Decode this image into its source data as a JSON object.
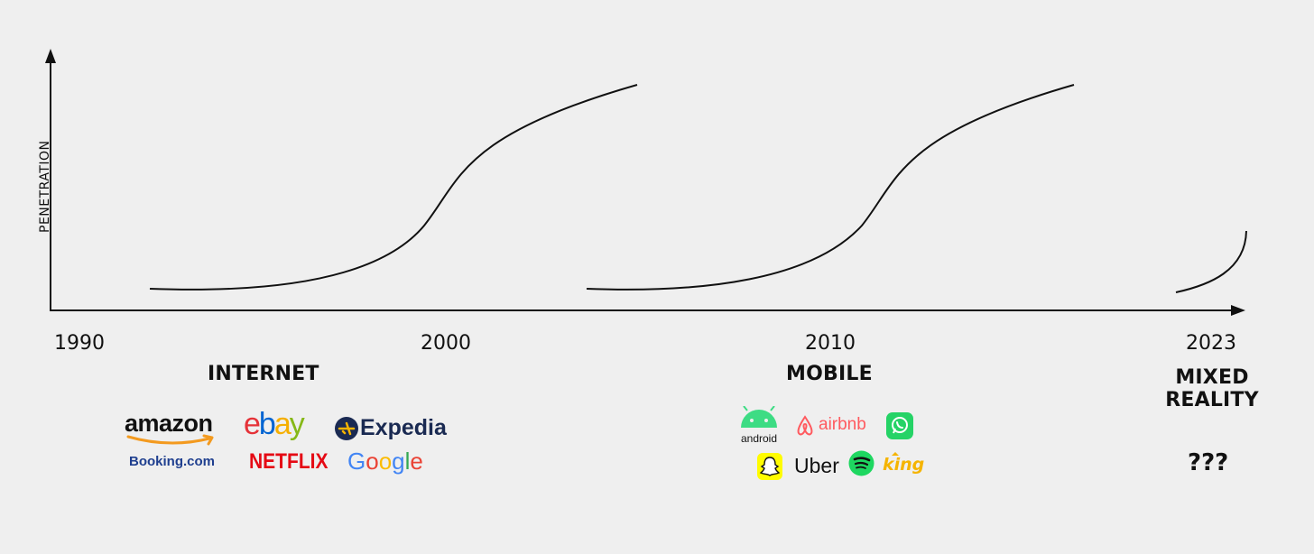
{
  "axis": {
    "ylabel": "PENETRATION"
  },
  "years": [
    "1990",
    "2000",
    "2010",
    "2023"
  ],
  "eras": [
    {
      "name": "INTERNET"
    },
    {
      "name": "MOBILE"
    },
    {
      "name_lines": [
        "MIXED",
        "REALITY"
      ]
    }
  ],
  "internet_logos": [
    "amazon",
    "ebay",
    "Expedia",
    "Booking.com",
    "NETFLIX",
    "Google"
  ],
  "mobile_logos": [
    "android",
    "airbnb",
    "whatsapp-icon",
    "snapchat-icon",
    "Uber",
    "spotify-icon",
    "king"
  ],
  "mixed_reality_logos": "???",
  "colors": {
    "background": "#efefef",
    "line": "#111111",
    "amazon_arrow": "#f39a1f",
    "ebay": [
      "#e53238",
      "#0064d2",
      "#f5af02",
      "#86b817"
    ],
    "expedia": "#1a2a52",
    "booking": "#1f3f8f",
    "netflix": "#e50914",
    "google": [
      "#4285f4",
      "#ea4335",
      "#fbbc05",
      "#4285f4",
      "#34a853",
      "#ea4335"
    ],
    "android": "#3ddc84",
    "airbnb": "#ff5a5f",
    "whatsapp": "#25d366",
    "snapchat": "#fffc00",
    "spotify": "#1ed760",
    "king": "#f5b400"
  }
}
